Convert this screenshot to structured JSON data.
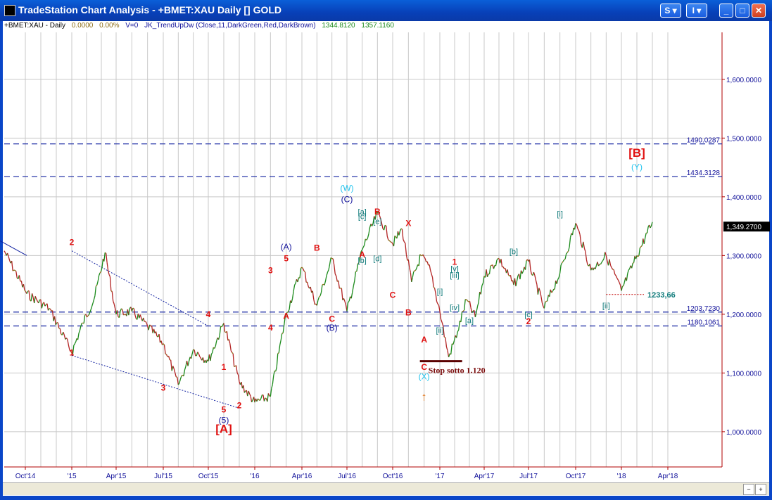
{
  "window": {
    "title": "TradeStation Chart Analysis - +BMET:XAU Daily [] GOLD",
    "buttons": [
      "S ▾",
      "I ▾",
      "_",
      "□",
      "✕"
    ]
  },
  "header": {
    "symbol": "+BMET:XAU - Daily",
    "change": "0.0000",
    "pct": "0.00%",
    "volume": "V=0",
    "indicator": "JK_TrendUpDw (Close,11,DarkGreen,Red,DarkBrown)",
    "val1": "1344.8120",
    "val2": "1357.1160"
  },
  "colors": {
    "up": "#1a8a1a",
    "down": "#b22222",
    "neutral": "#8b6b14",
    "red_label": "#e01010",
    "blue_label": "#10109a",
    "teal_label": "#0e7a7a",
    "cyan_label": "#22c4ee",
    "line_blue": "#1020a0",
    "price_axis": "#b00000"
  },
  "chart_data": {
    "type": "line",
    "x_ticks": [
      "Oct'14",
      "'15",
      "Apr'15",
      "Jul'15",
      "Oct'15",
      "'16",
      "Apr'16",
      "Jul'16",
      "Oct'16",
      "'17",
      "Apr'17",
      "Jul'17",
      "Oct'17",
      "'18",
      "Apr'18"
    ],
    "y_ticks": [
      "1,600.0000",
      "1,500.0000",
      "1,400.0000",
      "1,300.0000",
      "1,200.0000",
      "1,100.0000",
      "1,000.0000"
    ],
    "y_tick_values": [
      1600,
      1500,
      1400,
      1300,
      1200,
      1100,
      1000
    ],
    "ylim": [
      940,
      1680
    ],
    "last_price": "1,349.2700",
    "last_value": 1349.27,
    "h_levels": [
      {
        "label": "1490.0287",
        "value": 1490.0287
      },
      {
        "label": "1434.3128",
        "value": 1434.3128
      },
      {
        "label": "1203.7230",
        "value": 1203.723
      },
      {
        "label": "1180.1061",
        "value": 1180.1061
      }
    ],
    "level_1233": {
      "label": "1233,66",
      "value": 1233.66
    },
    "stop_text": "Stop sotto 1.120",
    "series": [
      {
        "name": "price",
        "points": [
          [
            "Oct'14",
            1308
          ],
          [
            "Oct'14",
            1235
          ],
          [
            "Oct'14",
            1210
          ],
          [
            "'15",
            1135
          ],
          [
            "'15",
            1185
          ],
          [
            "'15",
            1225
          ],
          [
            "'15",
            1305
          ],
          [
            "Apr'15",
            1200
          ],
          [
            "Apr'15",
            1205
          ],
          [
            "Apr'15",
            1180
          ],
          [
            "Jul'15",
            1150
          ],
          [
            "Jul'15",
            1080
          ],
          [
            "Jul'15",
            1140
          ],
          [
            "Oct'15",
            1120
          ],
          [
            "Oct'15",
            1185
          ],
          [
            "Oct'15",
            1085
          ],
          [
            "'16",
            1050
          ],
          [
            "'16",
            1060
          ],
          [
            "'16",
            1200
          ],
          [
            "Apr'16",
            1280
          ],
          [
            "Apr'16",
            1215
          ],
          [
            "Apr'16",
            1295
          ],
          [
            "Jul'16",
            1205
          ],
          [
            "Jul'16",
            1310
          ],
          [
            "Jul'16",
            1372
          ],
          [
            "Oct'16",
            1320
          ],
          [
            "Oct'16",
            1345
          ],
          [
            "Oct'16",
            1255
          ],
          [
            "Oct'16",
            1300
          ],
          [
            "Oct'16",
            1275
          ],
          [
            "'17",
            1205
          ],
          [
            "'17",
            1127
          ],
          [
            "'17",
            1170
          ],
          [
            "'17",
            1225
          ],
          [
            "'17",
            1195
          ],
          [
            "Apr'17",
            1265
          ],
          [
            "Apr'17",
            1295
          ],
          [
            "Apr'17",
            1250
          ],
          [
            "Jul'17",
            1290
          ],
          [
            "Jul'17",
            1210
          ],
          [
            "Jul'17",
            1270
          ],
          [
            "Oct'17",
            1355
          ],
          [
            "Oct'17",
            1275
          ],
          [
            "Oct'17",
            1300
          ],
          [
            "'18",
            1240
          ],
          [
            "'18",
            1300
          ],
          [
            "'18",
            1357
          ]
        ]
      }
    ]
  },
  "labels": [
    {
      "t": "1",
      "c": "red",
      "d": "Jan 2015",
      "p": 1130
    },
    {
      "t": "2",
      "c": "red",
      "d": "Jan 2015",
      "p": 1318
    },
    {
      "t": "3",
      "c": "red",
      "d": "Jul 2015",
      "p": 1070
    },
    {
      "t": "4",
      "c": "red",
      "d": "Oct 2015",
      "p": 1195
    },
    {
      "t": "1",
      "c": "red",
      "d": "Nov 2015",
      "p": 1105
    },
    {
      "t": "2",
      "c": "red",
      "d": "Dec 2015",
      "p": 1040
    },
    {
      "t": "5",
      "c": "red",
      "d": "Nov 2015",
      "p": 1033
    },
    {
      "t": "(5)",
      "c": "blue",
      "d": "Nov 2015",
      "p": 1015
    },
    {
      "t": "[A]",
      "c": "red_big",
      "d": "Nov 2015",
      "p": 998
    },
    {
      "t": "3",
      "c": "red",
      "d": "Feb 2016",
      "p": 1270
    },
    {
      "t": "4",
      "c": "red",
      "d": "Feb 2016",
      "p": 1172
    },
    {
      "t": "5",
      "c": "red",
      "d": "Mar 2016",
      "p": 1290
    },
    {
      "t": "(A)",
      "c": "blue",
      "d": "Mar 2016",
      "p": 1310
    },
    {
      "t": "A",
      "c": "red",
      "d": "Mar 2016",
      "p": 1192
    },
    {
      "t": "B",
      "c": "red",
      "d": "May 2016",
      "p": 1308
    },
    {
      "t": "C",
      "c": "red",
      "d": "Jun 2016",
      "p": 1187
    },
    {
      "t": "(B)",
      "c": "blue",
      "d": "Jun 2016",
      "p": 1172
    },
    {
      "t": "(W)",
      "c": "cyan",
      "d": "Jul 2016",
      "p": 1410
    },
    {
      "t": "(C)",
      "c": "blue",
      "d": "Jul 2016",
      "p": 1391
    },
    {
      "t": "[a]",
      "c": "teal",
      "d": "Aug 2016",
      "p": 1370
    },
    {
      "t": "[c]",
      "c": "teal",
      "d": "Aug 2016",
      "p": 1362
    },
    {
      "t": "[e]",
      "c": "teal",
      "d": "Sep 2016",
      "p": 1354
    },
    {
      "t": "B",
      "c": "red",
      "d": "Sep 2016",
      "p": 1370
    },
    {
      "t": "A",
      "c": "red",
      "d": "Aug 2016",
      "p": 1297
    },
    {
      "t": "[b]",
      "c": "teal",
      "d": "Aug 2016",
      "p": 1287
    },
    {
      "t": "[d]",
      "c": "teal",
      "d": "Sep 2016",
      "p": 1290
    },
    {
      "t": "C",
      "c": "red",
      "d": "Oct 2016",
      "p": 1228
    },
    {
      "t": "X",
      "c": "red",
      "d": "Nov 2016",
      "p": 1350
    },
    {
      "t": "B",
      "c": "red",
      "d": "Nov 2016",
      "p": 1198
    },
    {
      "t": "A",
      "c": "red",
      "d": "Dec 2016",
      "p": 1152
    },
    {
      "t": "C",
      "c": "red",
      "d": "Dec 2016",
      "p": 1105
    },
    {
      "t": "(X)",
      "c": "cyan",
      "d": "Dec 2016",
      "p": 1089
    },
    {
      "t": "↑",
      "c": "orange",
      "d": "Dec 2016",
      "p": 1053
    },
    {
      "t": "[i]",
      "c": "teal",
      "d": "Jan 2017",
      "p": 1234
    },
    {
      "t": "[ii]",
      "c": "teal",
      "d": "Jan 2017",
      "p": 1168
    },
    {
      "t": "[iii]",
      "c": "teal",
      "d": "Feb 2017",
      "p": 1262
    },
    {
      "t": "[iv]",
      "c": "teal",
      "d": "Feb 2017",
      "p": 1207
    },
    {
      "t": "[v]",
      "c": "teal",
      "d": "Feb 2017",
      "p": 1273
    },
    {
      "t": "1",
      "c": "red",
      "d": "Feb 2017",
      "p": 1284
    },
    {
      "t": "[a]",
      "c": "teal",
      "d": "Mar 2017",
      "p": 1185
    },
    {
      "t": "[b]",
      "c": "teal",
      "d": "Jun 2017",
      "p": 1302
    },
    {
      "t": "[c]",
      "c": "teal",
      "d": "Jul 2017",
      "p": 1195
    },
    {
      "t": "2",
      "c": "red",
      "d": "Jul 2017",
      "p": 1183
    },
    {
      "t": "[i]",
      "c": "teal",
      "d": "Sep 2017",
      "p": 1366
    },
    {
      "t": "[ii]",
      "c": "teal",
      "d": "Dec 2017",
      "p": 1210
    },
    {
      "t": "[B]",
      "c": "red_big",
      "d": "Feb 2018",
      "p": 1468
    },
    {
      "t": "(Y)",
      "c": "cyan",
      "d": "Feb 2018",
      "p": 1446
    }
  ]
}
